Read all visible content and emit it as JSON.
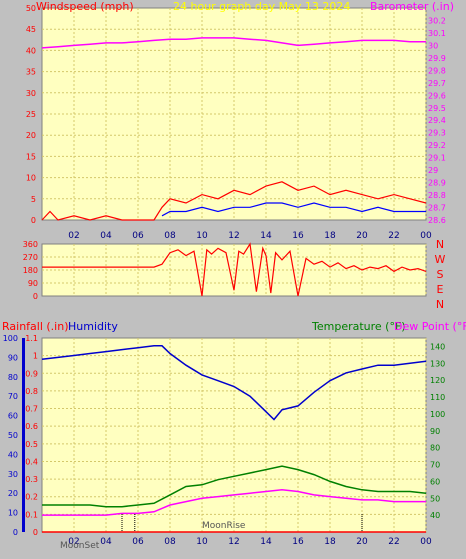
{
  "colors": {
    "background": "#c0c0c0",
    "plot_bg": "#ffffc0",
    "grid": "#d4c86a",
    "windspeed": "#ff0000",
    "gust": "#0000ff",
    "wind_green": "#008000",
    "barometer": "#ff00ff",
    "direction": "#ff0000",
    "rainfall": "#ff0000",
    "humidity": "#0000cd",
    "temperature": "#008000",
    "dew_point": "#ff00ff",
    "header_title": "#ffff00",
    "moon": "#555555"
  },
  "header": {
    "windspeed_label": "Windspeed (mph)",
    "title": "24 hour graph day May 13 2024",
    "barometer_label": "Barometer (.in)"
  },
  "direction_labels": [
    "N",
    "W",
    "S",
    "E",
    "N"
  ],
  "lower_header": {
    "rainfall_label": "Rainfall (.in)",
    "humidity_label": "Humidity",
    "temperature_label": "Temperature (°F)",
    "dewpoint_label": "Dew Point (°F)"
  },
  "moon_labels": {
    "moonset": "MoonSet",
    "moonrise": "MoonRise"
  },
  "chart_data": [
    {
      "type": "line",
      "title": "24 hour graph day May 13 2024",
      "x_ticks": [
        "02",
        "04",
        "06",
        "08",
        "10",
        "12",
        "14",
        "16",
        "18",
        "20",
        "22",
        "00"
      ],
      "xlim": [
        0,
        24
      ],
      "y_left": {
        "label": "Windspeed (mph)",
        "ylim": [
          0,
          50
        ],
        "ticks": [
          "0",
          "5",
          "10",
          "15",
          "20",
          "25",
          "30",
          "35",
          "40",
          "45",
          "50"
        ]
      },
      "y_right": {
        "label": "Barometer (.in)",
        "ylim": [
          28.6,
          30.3
        ],
        "ticks": [
          "28.6",
          "28.7",
          "28.8",
          "28.9",
          "29",
          "29.1",
          "29.2",
          "29.3",
          "29.4",
          "29.5",
          "29.6",
          "29.7",
          "29.8",
          "29.9",
          "30",
          "30.1",
          "30.2"
        ]
      },
      "grid": true,
      "series": [
        {
          "name": "Barometer",
          "axis": "right",
          "x": [
            0,
            1,
            2,
            3,
            4,
            5,
            6,
            7,
            8,
            9,
            10,
            11,
            12,
            13,
            14,
            15,
            16,
            17,
            18,
            19,
            20,
            21,
            22,
            23,
            24
          ],
          "values": [
            29.98,
            29.99,
            30.0,
            30.01,
            30.02,
            30.02,
            30.03,
            30.04,
            30.05,
            30.05,
            30.06,
            30.06,
            30.06,
            30.05,
            30.04,
            30.02,
            30.0,
            30.01,
            30.02,
            30.03,
            30.04,
            30.04,
            30.04,
            30.03,
            30.03
          ]
        },
        {
          "name": "Windspeed",
          "axis": "left",
          "x": [
            0,
            0.5,
            1,
            2,
            3,
            4,
            5,
            6,
            7,
            7.5,
            8,
            9,
            10,
            11,
            12,
            13,
            14,
            15,
            16,
            17,
            18,
            19,
            20,
            21,
            22,
            23,
            24
          ],
          "values": [
            0,
            2,
            0,
            1,
            0,
            1,
            0,
            0,
            0,
            3,
            5,
            4,
            6,
            5,
            7,
            6,
            8,
            9,
            7,
            8,
            6,
            7,
            6,
            5,
            6,
            5,
            4
          ]
        },
        {
          "name": "Gust",
          "axis": "left",
          "x": [
            7.5,
            8,
            9,
            10,
            11,
            12,
            13,
            14,
            15,
            16,
            17,
            18,
            19,
            20,
            21,
            22,
            23,
            24
          ],
          "values": [
            1,
            2,
            2,
            3,
            2,
            3,
            3,
            4,
            4,
            3,
            4,
            3,
            3,
            2,
            3,
            2,
            2,
            2
          ]
        }
      ]
    },
    {
      "type": "line",
      "title": "",
      "x_ticks": [
        "02",
        "04",
        "06",
        "08",
        "10",
        "12",
        "14",
        "16",
        "18",
        "20",
        "22",
        "00"
      ],
      "xlim": [
        0,
        24
      ],
      "y_left": {
        "ylim": [
          0,
          360
        ],
        "ticks": [
          "0",
          "90",
          "180",
          "270",
          "360"
        ]
      },
      "y_right_labels": [
        "N",
        "W",
        "S",
        "E",
        "N"
      ],
      "grid": true,
      "series": [
        {
          "name": "Wind Direction",
          "axis": "left",
          "x": [
            0,
            1,
            2,
            3,
            4,
            5,
            6,
            7,
            7.5,
            8,
            8.5,
            9,
            9.5,
            10,
            10.3,
            10.6,
            11,
            11.5,
            12,
            12.3,
            12.6,
            13,
            13.4,
            13.8,
            14,
            14.3,
            14.6,
            15,
            15.5,
            16,
            16.5,
            17,
            17.5,
            18,
            18.5,
            19,
            19.5,
            20,
            20.5,
            21,
            21.5,
            22,
            22.5,
            23,
            23.5,
            24
          ],
          "values": [
            200,
            200,
            200,
            200,
            200,
            200,
            200,
            200,
            220,
            300,
            320,
            280,
            310,
            0,
            320,
            290,
            330,
            300,
            40,
            310,
            290,
            360,
            30,
            330,
            280,
            20,
            300,
            250,
            310,
            0,
            260,
            220,
            240,
            200,
            230,
            190,
            210,
            180,
            200,
            190,
            210,
            170,
            200,
            180,
            190,
            170
          ]
        }
      ]
    },
    {
      "type": "line",
      "title": "",
      "x_ticks": [
        "02",
        "04",
        "06",
        "08",
        "10",
        "12",
        "14",
        "16",
        "18",
        "20",
        "22",
        "00"
      ],
      "xlim": [
        0,
        24
      ],
      "y_left": {
        "label": "Rainfall (.in)",
        "ylim": [
          0,
          1.1
        ],
        "ticks": [
          "0",
          "0.1",
          "0.2",
          "0.3",
          "0.4",
          "0.5",
          "0.6",
          "0.7",
          "0.8",
          "0.9",
          "1",
          "1.1"
        ]
      },
      "y_left2": {
        "label": "Humidity",
        "ylim": [
          0,
          100
        ],
        "ticks": [
          "0",
          "10",
          "20",
          "30",
          "40",
          "50",
          "60",
          "70",
          "80",
          "90",
          "100"
        ]
      },
      "y_right": {
        "label": "Temperature (°F)",
        "ylim": [
          30,
          145
        ],
        "ticks": [
          "40",
          "50",
          "60",
          "70",
          "80",
          "90",
          "100",
          "110",
          "120",
          "130",
          "140"
        ]
      },
      "grid": true,
      "series": [
        {
          "name": "Humidity",
          "axis": "left2",
          "x": [
            0,
            1,
            2,
            3,
            4,
            5,
            6,
            7,
            7.5,
            8,
            9,
            10,
            11,
            12,
            13,
            14,
            14.5,
            15,
            16,
            17,
            18,
            19,
            20,
            21,
            22,
            23,
            24
          ],
          "values": [
            89,
            90,
            91,
            92,
            93,
            94,
            95,
            96,
            96,
            92,
            86,
            81,
            78,
            75,
            70,
            62,
            58,
            63,
            65,
            72,
            78,
            82,
            84,
            86,
            86,
            87,
            88
          ]
        },
        {
          "name": "Temperature (°F)",
          "axis": "right",
          "x": [
            0,
            1,
            2,
            3,
            4,
            5,
            6,
            7,
            8,
            9,
            10,
            11,
            12,
            13,
            14,
            15,
            16,
            17,
            18,
            19,
            20,
            21,
            22,
            23,
            24
          ],
          "values": [
            46,
            46,
            46,
            46,
            45,
            45,
            46,
            47,
            52,
            57,
            58,
            61,
            63,
            65,
            67,
            69,
            67,
            64,
            60,
            57,
            55,
            54,
            54,
            54,
            53
          ]
        },
        {
          "name": "Dew Point (°F)",
          "axis": "right",
          "x": [
            0,
            1,
            2,
            3,
            4,
            5,
            6,
            7,
            8,
            9,
            10,
            11,
            12,
            13,
            14,
            15,
            16,
            17,
            18,
            19,
            20,
            21,
            22,
            23,
            24
          ],
          "values": [
            40,
            40,
            40,
            40,
            40,
            41,
            41,
            42,
            46,
            48,
            50,
            51,
            52,
            53,
            54,
            55,
            54,
            52,
            51,
            50,
            49,
            49,
            48,
            48,
            48
          ]
        },
        {
          "name": "Rainfall",
          "axis": "left",
          "x": [
            0,
            24
          ],
          "values": [
            0,
            0
          ]
        }
      ]
    }
  ]
}
